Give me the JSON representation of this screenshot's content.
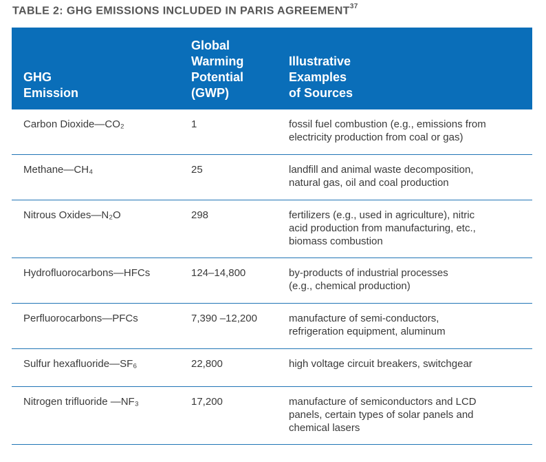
{
  "title": {
    "text": "TABLE 2: GHG EMISSIONS INCLUDED IN PARIS AGREEMENT",
    "footnote": "37"
  },
  "table": {
    "header_bg": "#0a6eb9",
    "rule_color": "#1f74b5",
    "headers": [
      [
        "GHG",
        "Emission"
      ],
      [
        "Global",
        "Warming",
        "Potential",
        "(GWP)"
      ],
      [
        "Illustrative",
        "Examples",
        "of Sources"
      ]
    ],
    "rows": [
      {
        "emission": "Carbon Dioxide—CO₂",
        "gwp": "1",
        "sources": [
          "fossil fuel combustion (e.g., emissions from",
          "electricity production from coal or gas)"
        ]
      },
      {
        "emission": "Methane—CH₄",
        "gwp": "25",
        "sources": [
          "landfill and animal waste decomposition,",
          "natural gas, oil and coal production"
        ]
      },
      {
        "emission": "Nitrous Oxides—N₂O",
        "gwp": "298",
        "sources": [
          "fertilizers (e.g., used in agriculture), nitric",
          "acid production from manufacturing, etc.,",
          "biomass combustion"
        ]
      },
      {
        "emission": "Hydrofluorocarbons—HFCs",
        "gwp": "124–14,800",
        "sources": [
          "by-products of industrial processes",
          "(e.g., chemical production)"
        ]
      },
      {
        "emission": "Perfluorocarbons—PFCs",
        "gwp": "7,390 –12,200",
        "sources": [
          "manufacture of semi-conductors,",
          "refrigeration equipment, aluminum"
        ]
      },
      {
        "emission": "Sulfur hexafluoride—SF₆",
        "gwp": "22,800",
        "sources": [
          "high voltage circuit breakers, switchgear"
        ]
      },
      {
        "emission": "Nitrogen trifluoride —NF₃",
        "gwp": "17,200",
        "sources": [
          "manufacture of semiconductors and LCD",
          "panels, certain types of solar panels and",
          "chemical lasers"
        ]
      }
    ]
  }
}
